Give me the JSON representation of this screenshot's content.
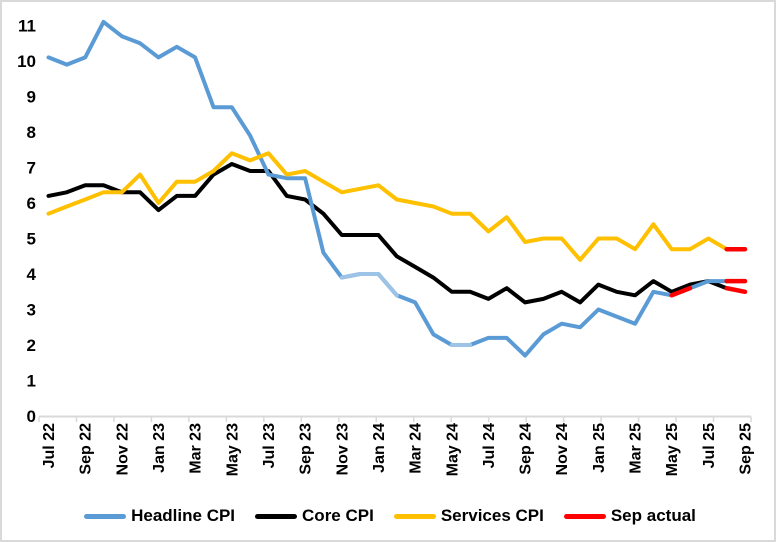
{
  "chart_data": {
    "type": "line",
    "title": "",
    "xlabel": "",
    "ylabel": "",
    "ylim": [
      0,
      11
    ],
    "y_ticks": [
      0,
      1,
      2,
      3,
      4,
      5,
      6,
      7,
      8,
      9,
      10,
      11
    ],
    "grid": false,
    "legend_position": "bottom",
    "axis_color": "#D9D9D9",
    "x_categories": [
      "Jul 22",
      "Aug 22",
      "Sep 22",
      "Oct 22",
      "Nov 22",
      "Dec 22",
      "Jan 23",
      "Feb 23",
      "Mar 23",
      "Apr 23",
      "May 23",
      "Jun 23",
      "Jul 23",
      "Aug 23",
      "Sep 23",
      "Oct 23",
      "Nov 23",
      "Dec 23",
      "Jan 24",
      "Feb 24",
      "Mar 24",
      "Apr 24",
      "May 24",
      "Jun 24",
      "Jul 24",
      "Aug 24",
      "Sep 24",
      "Oct 24",
      "Nov 24",
      "Dec 24",
      "Jan 25",
      "Feb 25",
      "Mar 25",
      "Apr 25",
      "May 25",
      "Jun 25",
      "Jul 25",
      "Aug 25",
      "Sep 25"
    ],
    "x_tick_label_indices": [
      0,
      2,
      4,
      6,
      8,
      10,
      12,
      14,
      16,
      18,
      20,
      22,
      24,
      26,
      28,
      30,
      32,
      34,
      36,
      38
    ],
    "draw_order": [
      1,
      0,
      2,
      3
    ],
    "series": [
      {
        "name": "Headline CPI",
        "color": "#5B9BD5",
        "light_color": "#9DC3E6",
        "light_segments": [
          [
            16,
            19
          ],
          [
            22,
            23
          ]
        ],
        "values": [
          10.1,
          9.9,
          10.1,
          11.1,
          10.7,
          10.5,
          10.1,
          10.4,
          10.1,
          8.7,
          8.7,
          7.9,
          6.8,
          6.7,
          6.7,
          4.6,
          3.9,
          4.0,
          4.0,
          3.4,
          3.2,
          2.3,
          2.0,
          2.0,
          2.2,
          2.2,
          1.7,
          2.3,
          2.6,
          2.5,
          3.0,
          2.8,
          2.6,
          3.5,
          3.4,
          3.6,
          3.8,
          3.8,
          null
        ]
      },
      {
        "name": "Core CPI",
        "color": "#000000",
        "values": [
          6.2,
          6.3,
          6.5,
          6.5,
          6.3,
          6.3,
          5.8,
          6.2,
          6.2,
          6.8,
          7.1,
          6.9,
          6.9,
          6.2,
          6.1,
          5.7,
          5.1,
          5.1,
          5.1,
          4.5,
          4.2,
          3.9,
          3.5,
          3.5,
          3.3,
          3.6,
          3.2,
          3.3,
          3.5,
          3.2,
          3.7,
          3.5,
          3.4,
          3.8,
          3.5,
          3.7,
          3.8,
          3.6,
          null
        ]
      },
      {
        "name": "Services CPI",
        "color": "#FFC000",
        "values": [
          5.7,
          5.9,
          6.1,
          6.3,
          6.3,
          6.8,
          6.0,
          6.6,
          6.6,
          6.9,
          7.4,
          7.2,
          7.4,
          6.8,
          6.9,
          6.6,
          6.3,
          6.4,
          6.5,
          6.1,
          6.0,
          5.9,
          5.7,
          5.7,
          5.2,
          5.6,
          4.9,
          5.0,
          5.0,
          4.4,
          5.0,
          5.0,
          4.7,
          5.4,
          4.7,
          4.7,
          5.0,
          4.7,
          null
        ]
      },
      {
        "name": "Sep actual",
        "color": "#FF0000",
        "overlay": true,
        "segments": [
          {
            "x": [
              34,
              35
            ],
            "values": [
              3.4,
              3.6
            ]
          },
          {
            "x": [
              37,
              38
            ],
            "values": [
              4.7,
              4.7
            ]
          },
          {
            "x": [
              37,
              38
            ],
            "values": [
              3.8,
              3.8
            ]
          },
          {
            "x": [
              37,
              38
            ],
            "values": [
              3.6,
              3.5
            ]
          }
        ]
      }
    ],
    "sep_actual_readings": {
      "headline": 3.8,
      "core": 3.5,
      "services": 4.7
    }
  },
  "legend": {
    "items": [
      {
        "label": "Headline CPI",
        "color": "#5B9BD5"
      },
      {
        "label": "Core CPI",
        "color": "#000000"
      },
      {
        "label": "Services CPI",
        "color": "#FFC000"
      },
      {
        "label": "Sep actual",
        "color": "#FF0000"
      }
    ]
  }
}
